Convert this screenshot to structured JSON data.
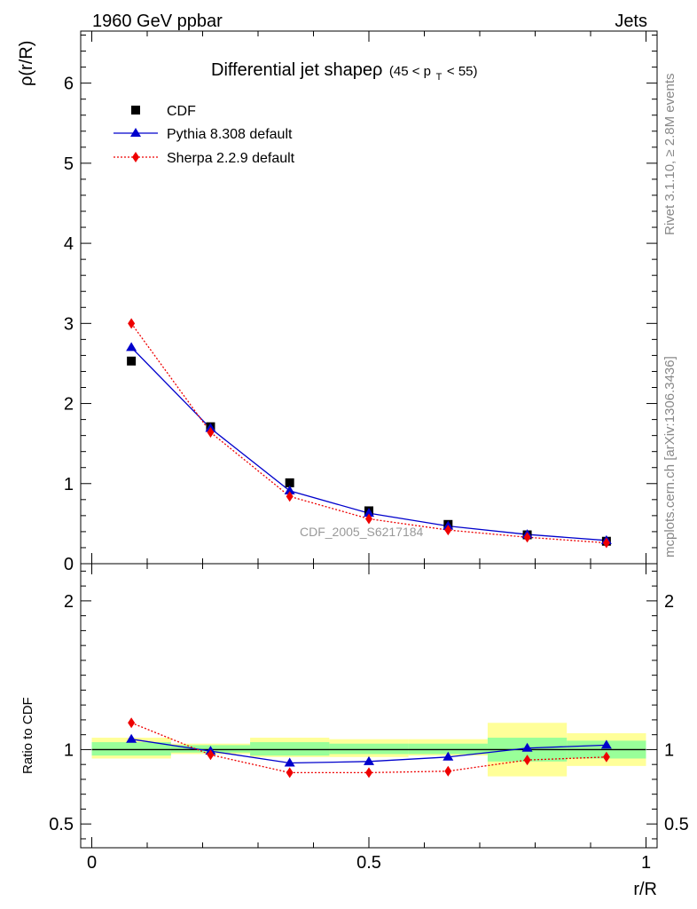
{
  "header": {
    "left": "1960 GeV ppbar",
    "right": "Jets"
  },
  "side_labels": {
    "rivet": "Rivet 3.1.10, ≥ 2.8M events",
    "mcplots": "mcplots.cern.ch [arXiv:1306.3436]"
  },
  "chart_data": {
    "type": "line",
    "title_main": "Differential jet shapeρ",
    "title_range_prefix": "(45 < p",
    "title_range_sub": "T",
    "title_range_suffix": " < 55)",
    "watermark": "CDF_2005_S6217184",
    "xlabel": "r/R",
    "ylabel": "ρ(r/R)",
    "ratio_ylabel": "Ratio to CDF",
    "xlim": [
      -0.02,
      1.02
    ],
    "ylim": [
      0,
      6.65
    ],
    "ratio_ylim": [
      0.34,
      2.25
    ],
    "x_ticks": [
      {
        "v": 0,
        "label": "0"
      },
      {
        "v": 0.5,
        "label": "0.5"
      },
      {
        "v": 1,
        "label": "1"
      }
    ],
    "y_ticks": [
      {
        "v": 0,
        "label": "0"
      },
      {
        "v": 1,
        "label": "1"
      },
      {
        "v": 2,
        "label": "2"
      },
      {
        "v": 3,
        "label": "3"
      },
      {
        "v": 4,
        "label": "4"
      },
      {
        "v": 5,
        "label": "5"
      },
      {
        "v": 6,
        "label": "6"
      }
    ],
    "ratio_ticks": [
      {
        "v": 0.5,
        "label": "0.5"
      },
      {
        "v": 1,
        "label": "1"
      },
      {
        "v": 2,
        "label": "2"
      }
    ],
    "x": [
      0.0714,
      0.2143,
      0.3571,
      0.5,
      0.6429,
      0.7857,
      0.9286
    ],
    "bin_edges": [
      0,
      0.1429,
      0.2857,
      0.4286,
      0.5714,
      0.7143,
      0.8571,
      1.0
    ],
    "series": [
      {
        "name": "CDF",
        "values": [
          2.53,
          1.71,
          1.01,
          0.66,
          0.49,
          0.36,
          0.28
        ],
        "color": "#000000",
        "marker": "square"
      },
      {
        "name": "Pythia 8.308 default",
        "values": [
          2.7,
          1.69,
          0.91,
          0.63,
          0.47,
          0.365,
          0.29
        ],
        "color": "#0000cc",
        "marker": "triangle",
        "style": "solid"
      },
      {
        "name": "Sherpa 2.2.9 default",
        "values": [
          3.0,
          1.64,
          0.84,
          0.56,
          0.42,
          0.33,
          0.26
        ],
        "color": "#ee0000",
        "marker": "diamond",
        "style": "dotted"
      }
    ],
    "ratio_series": [
      {
        "name": "Pythia 8.308 default",
        "values": [
          1.07,
          0.99,
          0.91,
          0.92,
          0.95,
          1.01,
          1.03
        ]
      },
      {
        "name": "Sherpa 2.2.9 default",
        "values": [
          1.18,
          0.965,
          0.845,
          0.845,
          0.855,
          0.93,
          0.95
        ]
      }
    ],
    "ratio_band_yellow": [
      [
        0.94,
        1.08
      ],
      [
        0.97,
        1.04
      ],
      [
        0.95,
        1.08
      ],
      [
        0.95,
        1.07
      ],
      [
        0.96,
        1.07
      ],
      [
        0.82,
        1.18
      ],
      [
        0.89,
        1.11
      ]
    ],
    "ratio_band_green": [
      [
        0.96,
        1.05
      ],
      [
        0.98,
        1.03
      ],
      [
        0.96,
        1.05
      ],
      [
        0.97,
        1.04
      ],
      [
        0.97,
        1.04
      ],
      [
        0.92,
        1.08
      ],
      [
        0.94,
        1.06
      ]
    ],
    "colors": {
      "yellow": "#ffff99",
      "green": "#99ff99"
    }
  }
}
